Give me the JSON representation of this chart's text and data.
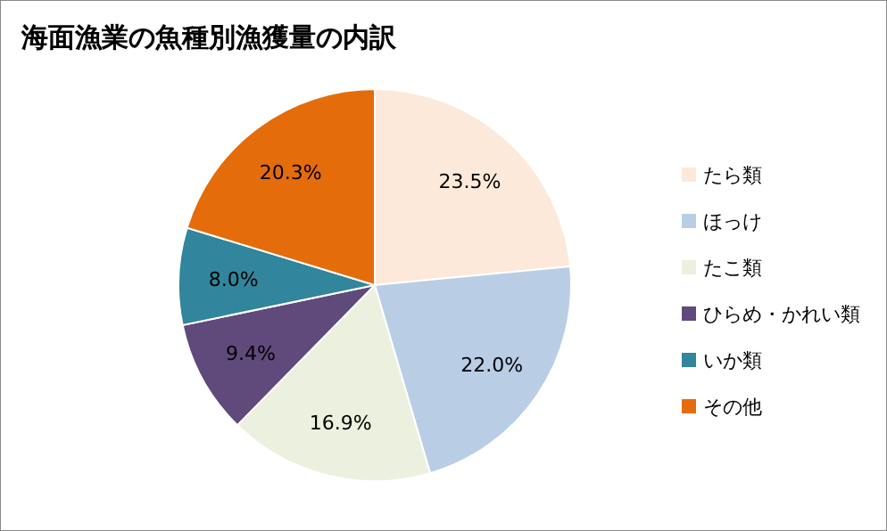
{
  "chart_data": {
    "type": "pie",
    "title": "海面漁業の魚種別漁獲量の内訳",
    "categories": [
      "たら類",
      "ほっけ",
      "たこ類",
      "ひらめ・かれい類",
      "いか類",
      "その他"
    ],
    "values": [
      23.5,
      22.0,
      16.9,
      9.4,
      8.0,
      20.3
    ],
    "colors": [
      "#fde9d9",
      "#b9cde5",
      "#ebf1de",
      "#604a7b",
      "#31859c",
      "#e46c0a"
    ],
    "value_labels": [
      "23.5%",
      "22.0%",
      "16.9%",
      "9.4%",
      "8.0%",
      "20.3%"
    ],
    "legend": "right"
  }
}
